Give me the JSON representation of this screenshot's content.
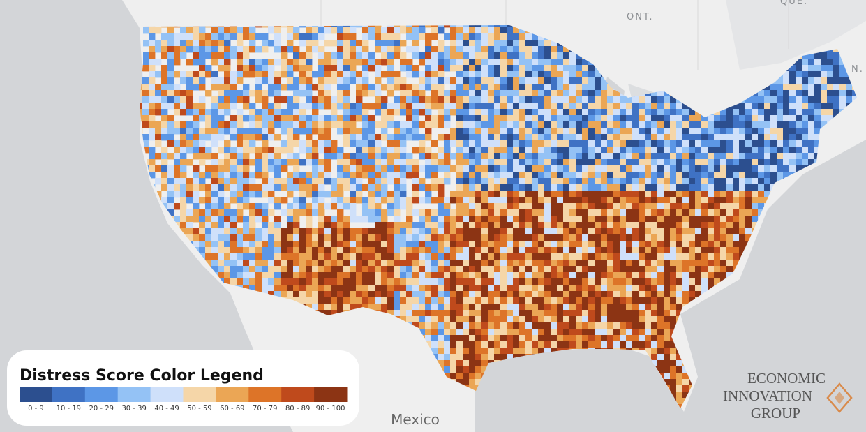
{
  "legend": {
    "title": "Distress Score Color Legend",
    "bins": [
      {
        "label": "0 - 9",
        "color": "#2c4f8f"
      },
      {
        "label": "10 - 19",
        "color": "#3f72c4"
      },
      {
        "label": "20 - 29",
        "color": "#5c97e6"
      },
      {
        "label": "30 - 39",
        "color": "#94c2f5"
      },
      {
        "label": "40 - 49",
        "color": "#cfe0fa"
      },
      {
        "label": "50 - 59",
        "color": "#f5d6a8"
      },
      {
        "label": "60 - 69",
        "color": "#eba655"
      },
      {
        "label": "70 - 79",
        "color": "#dd7428"
      },
      {
        "label": "80 - 89",
        "color": "#bf4a1c"
      },
      {
        "label": "90 - 100",
        "color": "#8c3414"
      }
    ]
  },
  "map_labels": [
    "ONT.",
    "QUE.",
    "N.",
    "Mexico"
  ],
  "logo": {
    "lines": [
      "ECONOMIC",
      "INNOVATION",
      "GROUP"
    ]
  }
}
